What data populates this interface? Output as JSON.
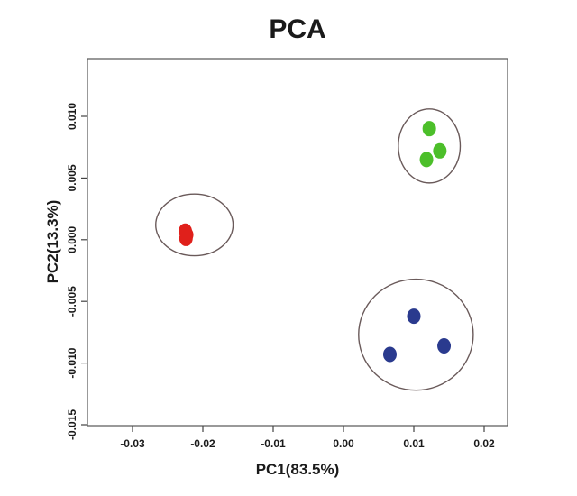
{
  "chart_data": {
    "type": "scatter",
    "title": "PCA",
    "xlabel": "PC1(83.5%)",
    "ylabel": "PC2(13.3%)",
    "xlim": [
      -0.03,
      0.02
    ],
    "ylim": [
      -0.015,
      0.01
    ],
    "xticks": [
      -0.03,
      -0.02,
      -0.01,
      0.0,
      0.01,
      0.02
    ],
    "xtick_labels": [
      "-0.03",
      "-0.02",
      "-0.01",
      "0.00",
      "0.01",
      "0.02"
    ],
    "yticks": [
      -0.015,
      -0.01,
      -0.005,
      0.0,
      0.005,
      0.01
    ],
    "ytick_labels": [
      "-0.015",
      "-0.010",
      "-0.005",
      "0.000",
      "0.005",
      "0.010"
    ],
    "grid": false,
    "legend": "none",
    "series": [
      {
        "color": "#e0201b",
        "points": [
          {
            "x": -0.0225,
            "y": 0.0007
          },
          {
            "x": -0.0223,
            "y": 0.0004
          },
          {
            "x": -0.0224,
            "y": 0.0001
          }
        ],
        "ellipse": {
          "cx": -0.0212,
          "cy": 0.0012,
          "rx": 0.011,
          "ry": 0.0025
        }
      },
      {
        "color": "#4cbf2a",
        "points": [
          {
            "x": 0.0122,
            "y": 0.009
          },
          {
            "x": 0.0137,
            "y": 0.0072
          },
          {
            "x": 0.0118,
            "y": 0.0065
          }
        ],
        "ellipse": {
          "cx": 0.0122,
          "cy": 0.0076,
          "rx": 0.0088,
          "ry": 0.003
        }
      },
      {
        "color": "#2a3a8e",
        "points": [
          {
            "x": 0.01,
            "y": -0.0062
          },
          {
            "x": 0.0143,
            "y": -0.0086
          },
          {
            "x": 0.0066,
            "y": -0.0093
          }
        ],
        "ellipse": {
          "cx": 0.0103,
          "cy": -0.0077,
          "rx": 0.0163,
          "ry": 0.0045
        }
      }
    ]
  }
}
